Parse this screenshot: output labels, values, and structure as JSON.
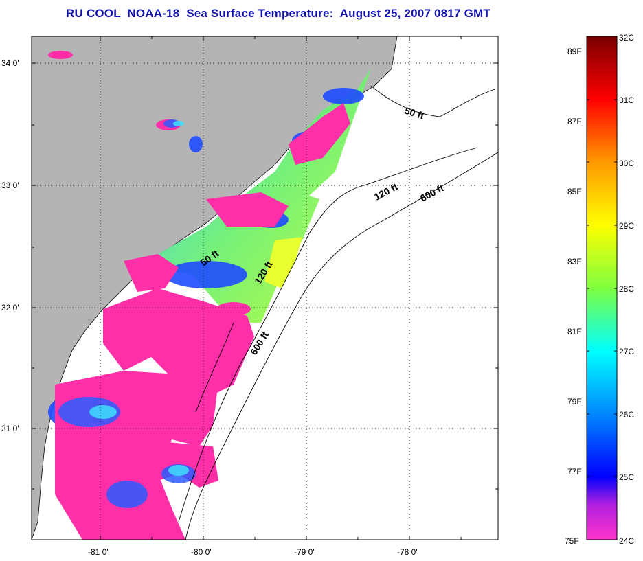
{
  "title": "RU COOL  NOAA-18  Sea Surface Temperature:  August 25, 2007 0817 GMT",
  "map": {
    "lon_ticks": [
      "-81 0'",
      "-80 0'",
      "-79 0'",
      "-78 0'"
    ],
    "lat_ticks": [
      "34 0'",
      "33 0'",
      "32 0'",
      "31 0'"
    ],
    "isobaths": [
      "50 ft",
      "120 ft",
      "600 ft",
      "50 ft",
      "120 ft",
      "600 ft"
    ]
  },
  "colorbar": {
    "celsius_labels": [
      "32C",
      "31C",
      "30C",
      "29C",
      "28C",
      "27C",
      "26C",
      "25C",
      "24C"
    ],
    "fahrenheit_labels": [
      "89F",
      "87F",
      "85F",
      "83F",
      "81F",
      "79F",
      "77F",
      "75F"
    ],
    "colors": [
      "#ff33cc",
      "#8a1fe0",
      "#0000ff",
      "#00ffff",
      "#7fff3f",
      "#ffff00",
      "#ff9900",
      "#ff0000",
      "#7a0000"
    ]
  }
}
